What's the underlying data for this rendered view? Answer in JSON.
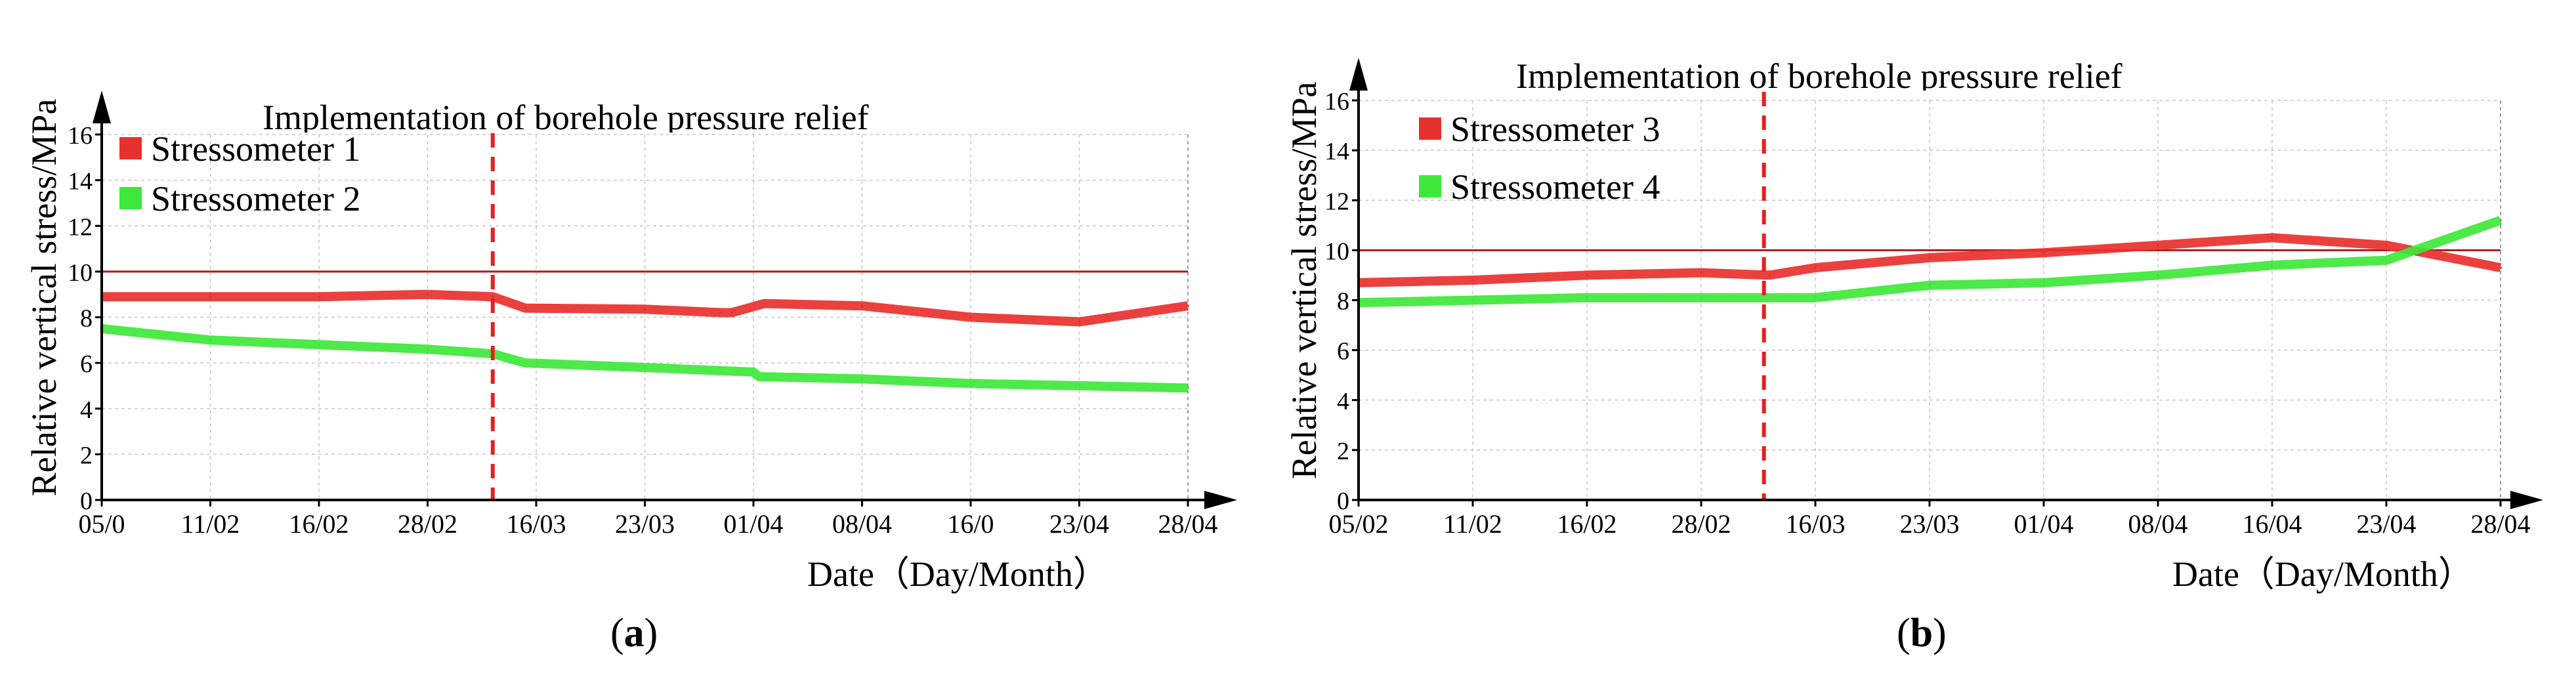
{
  "chart_data": [
    {
      "type": "line",
      "panel_label": "a",
      "title": "Implementation of borehole pressure relief",
      "xlabel": "Date（Day/Month）",
      "ylabel": "Relative vertical stress/MPa",
      "x_ticks": [
        "05/0",
        "11/02",
        "16/02",
        "28/02",
        "16/03",
        "23/03",
        "01/04",
        "08/04",
        "16/0",
        "23/04",
        "28/04"
      ],
      "y_ticks": [
        0,
        2,
        4,
        6,
        8,
        10,
        12,
        14,
        16
      ],
      "ylim": [
        0,
        16
      ],
      "threshold": 10,
      "event_tick_position": 3.6,
      "grid": true,
      "legend_position": "top-left",
      "series": [
        {
          "name": "Stressometer 1",
          "color": "#e8312f",
          "values": [
            [
              0,
              8.9
            ],
            [
              1,
              8.9
            ],
            [
              2,
              8.9
            ],
            [
              3,
              9.0
            ],
            [
              3.6,
              8.9
            ],
            [
              3.9,
              8.4
            ],
            [
              5,
              8.35
            ],
            [
              5.7,
              8.2
            ],
            [
              5.8,
              8.2
            ],
            [
              6.1,
              8.6
            ],
            [
              7,
              8.5
            ],
            [
              8,
              8.0
            ],
            [
              9,
              7.8
            ],
            [
              10,
              8.5
            ]
          ]
        },
        {
          "name": "Stressometer 2",
          "color": "#3ee83a",
          "values": [
            [
              0,
              7.5
            ],
            [
              1,
              7.0
            ],
            [
              2,
              6.8
            ],
            [
              3,
              6.6
            ],
            [
              3.6,
              6.4
            ],
            [
              3.9,
              6.0
            ],
            [
              5,
              5.8
            ],
            [
              6,
              5.6
            ],
            [
              6.05,
              5.4
            ],
            [
              7,
              5.3
            ],
            [
              8,
              5.1
            ],
            [
              9,
              5.0
            ],
            [
              10,
              4.9
            ]
          ]
        }
      ]
    },
    {
      "type": "line",
      "panel_label": "b",
      "title": "Implementation of borehole pressure relief",
      "xlabel": "Date（Day/Month）",
      "ylabel": "Relative vertical stress/MPa",
      "x_ticks": [
        "05/02",
        "11/02",
        "16/02",
        "28/02",
        "16/03",
        "23/03",
        "01/04",
        "08/04",
        "16/04",
        "23/04",
        "28/04"
      ],
      "y_ticks": [
        0,
        2,
        4,
        6,
        8,
        10,
        12,
        14,
        16
      ],
      "ylim": [
        0,
        16
      ],
      "threshold": 10,
      "event_tick_position": 3.55,
      "grid": true,
      "legend_position": "top-left",
      "series": [
        {
          "name": "Stressometer 3",
          "color": "#e8312f",
          "values": [
            [
              0,
              8.7
            ],
            [
              1,
              8.8
            ],
            [
              2,
              9.0
            ],
            [
              3,
              9.1
            ],
            [
              3.6,
              9.0
            ],
            [
              4,
              9.3
            ],
            [
              5,
              9.7
            ],
            [
              6,
              9.9
            ],
            [
              7,
              10.2
            ],
            [
              8,
              10.5
            ],
            [
              9,
              10.2
            ],
            [
              10,
              9.3
            ]
          ]
        },
        {
          "name": "Stressometer 4",
          "color": "#3ee83a",
          "values": [
            [
              0,
              7.9
            ],
            [
              1,
              8.0
            ],
            [
              2,
              8.1
            ],
            [
              3,
              8.1
            ],
            [
              4,
              8.1
            ],
            [
              5,
              8.6
            ],
            [
              6,
              8.7
            ],
            [
              7,
              9.0
            ],
            [
              8,
              9.4
            ],
            [
              9,
              9.6
            ],
            [
              10,
              11.2
            ]
          ]
        }
      ]
    }
  ]
}
